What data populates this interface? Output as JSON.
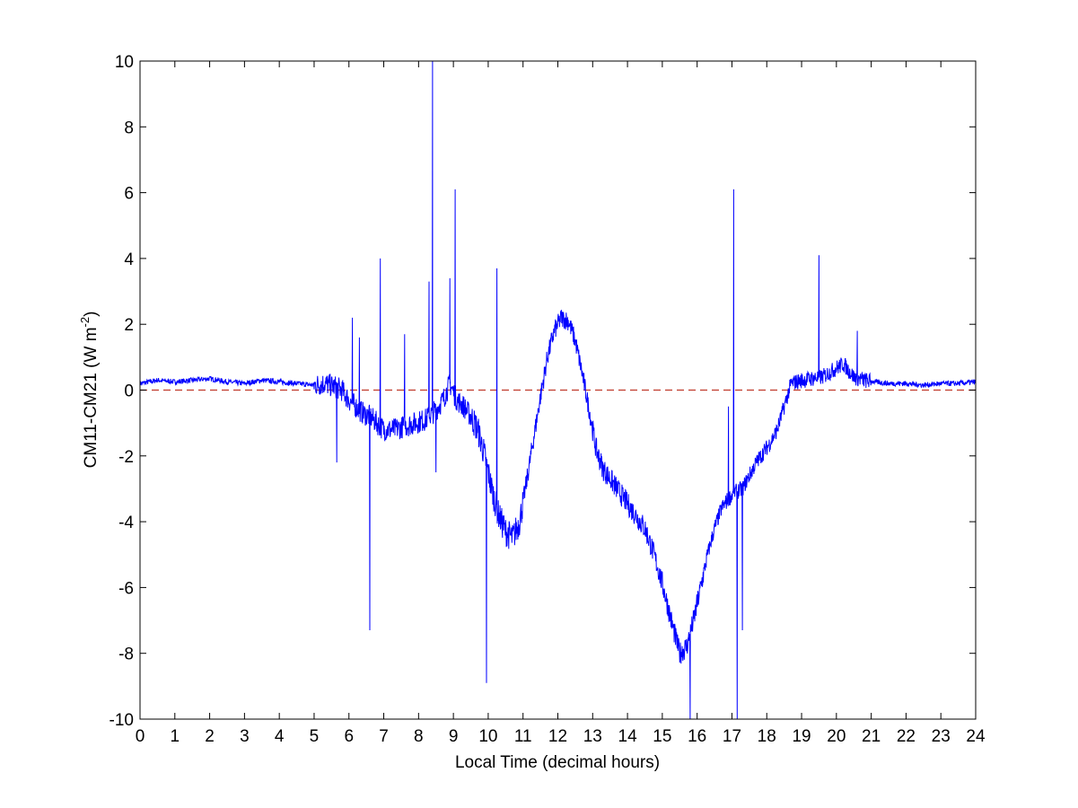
{
  "chart_data": {
    "type": "line",
    "title": "",
    "xlabel": "Local Time (decimal hours)",
    "ylabel_main": "CM11-CM21 (W m",
    "ylabel_sup": "-2",
    "ylabel_close": ")",
    "xlim": [
      0,
      24
    ],
    "ylim": [
      -10,
      10
    ],
    "xticks": [
      0,
      1,
      2,
      3,
      4,
      5,
      6,
      7,
      8,
      9,
      10,
      11,
      12,
      13,
      14,
      15,
      16,
      17,
      18,
      19,
      20,
      21,
      22,
      23,
      24
    ],
    "yticks": [
      -10,
      -8,
      -6,
      -4,
      -2,
      0,
      2,
      4,
      6,
      8,
      10
    ],
    "grid": false,
    "legend": "none",
    "colors": {
      "series": "#0000ff",
      "reference": "#c0392b"
    },
    "reference_line": {
      "y": 0,
      "style": "dashed"
    },
    "series": [
      {
        "x": [
          0,
          0.5,
          1,
          1.5,
          2,
          2.5,
          3,
          3.5,
          4,
          4.5,
          5,
          5.3,
          5.6,
          5.8,
          6,
          6.2,
          6.4,
          6.6,
          6.8,
          7,
          7.3,
          7.6,
          7.9,
          8.2,
          8.5,
          8.7,
          8.9,
          9.1,
          9.3,
          9.5,
          9.7,
          9.9,
          10.1,
          10.3,
          10.5,
          10.7,
          10.9,
          11.1,
          11.3,
          11.5,
          11.7,
          11.9,
          12.1,
          12.3,
          12.5,
          12.7,
          12.9,
          13.1,
          13.3,
          13.5,
          13.7,
          13.9,
          14.1,
          14.3,
          14.5,
          14.7,
          14.9,
          15.1,
          15.3,
          15.5,
          15.7,
          15.9,
          16.1,
          16.3,
          16.5,
          16.7,
          16.9,
          17.1,
          17.3,
          17.5,
          17.7,
          17.9,
          18.1,
          18.3,
          18.5,
          18.7,
          19,
          19.3,
          19.6,
          19.9,
          20.2,
          20.5,
          20.8,
          21.1,
          21.5,
          22,
          22.5,
          23,
          23.5,
          24
        ],
        "y": [
          0.2,
          0.3,
          0.25,
          0.3,
          0.35,
          0.25,
          0.2,
          0.3,
          0.25,
          0.2,
          0.15,
          0.2,
          0.1,
          0.0,
          -0.3,
          -0.5,
          -0.7,
          -0.8,
          -1.0,
          -1.2,
          -1.2,
          -1.1,
          -1.0,
          -0.9,
          -0.6,
          -0.3,
          0.2,
          -0.3,
          -0.5,
          -0.8,
          -1.2,
          -2.0,
          -3.0,
          -3.8,
          -4.3,
          -4.5,
          -4.0,
          -2.8,
          -1.5,
          -0.2,
          1.0,
          1.8,
          2.2,
          2.1,
          1.5,
          0.5,
          -0.6,
          -1.8,
          -2.4,
          -2.7,
          -3.0,
          -3.3,
          -3.6,
          -3.9,
          -4.2,
          -4.8,
          -5.5,
          -6.3,
          -7.2,
          -8.0,
          -7.8,
          -7.0,
          -6.0,
          -5.0,
          -4.2,
          -3.6,
          -3.3,
          -3.1,
          -3.0,
          -2.6,
          -2.2,
          -1.9,
          -1.6,
          -1.2,
          -0.5,
          0.2,
          0.3,
          0.35,
          0.4,
          0.6,
          0.8,
          0.4,
          0.3,
          0.25,
          0.2,
          0.2,
          0.15,
          0.2,
          0.2,
          0.25
        ]
      }
    ],
    "spikes": [
      {
        "x": 5.65,
        "y": -2.2
      },
      {
        "x": 6.3,
        "y": 1.6
      },
      {
        "x": 6.1,
        "y": 2.2
      },
      {
        "x": 6.6,
        "y": -7.3
      },
      {
        "x": 6.9,
        "y": 4.0
      },
      {
        "x": 7.6,
        "y": 1.7
      },
      {
        "x": 8.3,
        "y": 3.3
      },
      {
        "x": 8.4,
        "y": 10
      },
      {
        "x": 8.5,
        "y": -2.5
      },
      {
        "x": 8.9,
        "y": 3.4
      },
      {
        "x": 9.05,
        "y": 6.1
      },
      {
        "x": 9.95,
        "y": -8.9
      },
      {
        "x": 10.25,
        "y": 3.7
      },
      {
        "x": 15.8,
        "y": -10
      },
      {
        "x": 16.9,
        "y": -0.5
      },
      {
        "x": 17.05,
        "y": 6.1
      },
      {
        "x": 17.15,
        "y": -10
      },
      {
        "x": 17.3,
        "y": -7.3
      },
      {
        "x": 19.5,
        "y": 4.1
      },
      {
        "x": 20.6,
        "y": 1.8
      }
    ]
  }
}
